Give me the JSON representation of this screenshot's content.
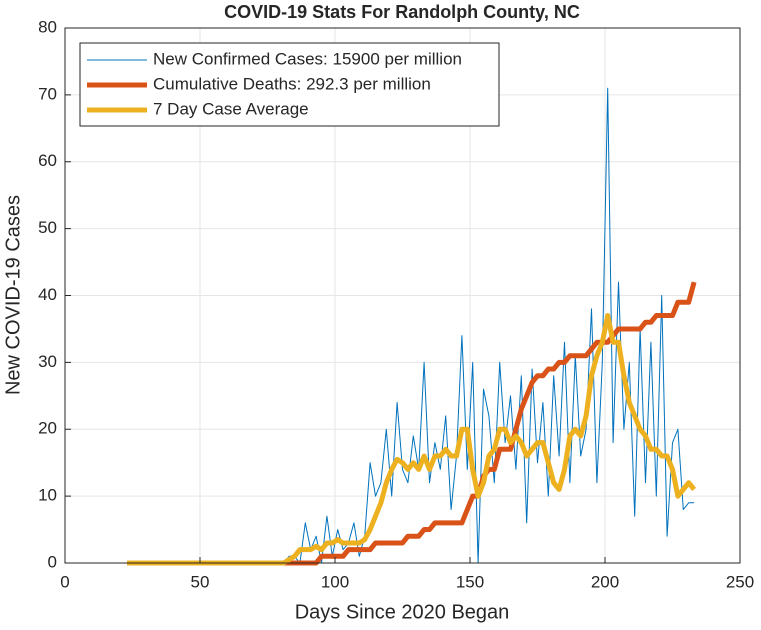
{
  "chart_data": {
    "type": "line",
    "title": "COVID-19 Stats For Randolph County, NC",
    "x_label": "Days Since 2020 Began",
    "y_label": "New COVID-19 Cases",
    "xlim": [
      0,
      250
    ],
    "xticks": [
      0,
      50,
      100,
      150,
      200,
      250
    ],
    "ylim": [
      0,
      80
    ],
    "yticks": [
      0,
      10,
      20,
      30,
      40,
      50,
      60,
      70,
      80
    ],
    "grid": true,
    "legend": "upper left",
    "x": [
      23,
      25,
      27,
      29,
      31,
      33,
      35,
      37,
      39,
      41,
      43,
      45,
      47,
      49,
      51,
      53,
      55,
      57,
      59,
      61,
      63,
      65,
      67,
      69,
      71,
      73,
      75,
      77,
      79,
      81,
      83,
      85,
      87,
      89,
      91,
      93,
      95,
      97,
      99,
      101,
      103,
      105,
      107,
      109,
      111,
      113,
      115,
      117,
      119,
      121,
      123,
      125,
      127,
      129,
      131,
      133,
      135,
      137,
      139,
      141,
      143,
      145,
      147,
      149,
      151,
      153,
      155,
      157,
      159,
      161,
      163,
      165,
      167,
      169,
      171,
      173,
      175,
      177,
      179,
      181,
      183,
      185,
      187,
      189,
      191,
      193,
      195,
      197,
      199,
      201,
      203,
      205,
      207,
      209,
      211,
      213,
      215,
      217,
      219,
      221,
      223,
      225,
      227,
      229,
      231,
      233
    ],
    "series": [
      {
        "name": "New Confirmed Cases: 15900 per million",
        "color": "#0072BD",
        "values": [
          0,
          0,
          0,
          0,
          0,
          0,
          0,
          0,
          0,
          0,
          0,
          0,
          0,
          0,
          0,
          0,
          0,
          0,
          0,
          0,
          0,
          0,
          0,
          0,
          0,
          0,
          0,
          0,
          0,
          0,
          1,
          1,
          0,
          6,
          2,
          4,
          0,
          7,
          1,
          5,
          2,
          3,
          6,
          1,
          4,
          15,
          10,
          12,
          20,
          10,
          24,
          14,
          12,
          19,
          14,
          30,
          12,
          18,
          14,
          22,
          8,
          16,
          34,
          14,
          30,
          0,
          26,
          22,
          12,
          30,
          18,
          25,
          14,
          28,
          6,
          29,
          15,
          24,
          10,
          28,
          16,
          33,
          12,
          31,
          16,
          20,
          38,
          12,
          30,
          71,
          18,
          42,
          20,
          30,
          7,
          35,
          12,
          33,
          10,
          40,
          4,
          18,
          20,
          8,
          9,
          9
        ]
      },
      {
        "name": "Cumulative Deaths: 292.3 per million",
        "color": "#D95319",
        "values": [
          0,
          0,
          0,
          0,
          0,
          0,
          0,
          0,
          0,
          0,
          0,
          0,
          0,
          0,
          0,
          0,
          0,
          0,
          0,
          0,
          0,
          0,
          0,
          0,
          0,
          0,
          0,
          0,
          0,
          0,
          0,
          0,
          0,
          0,
          0,
          0,
          1,
          1,
          1,
          1,
          1,
          2,
          2,
          2,
          2,
          2,
          3,
          3,
          3,
          3,
          3,
          3,
          4,
          4,
          4,
          5,
          5,
          6,
          6,
          6,
          6,
          6,
          6,
          8,
          10,
          10,
          13,
          14,
          14,
          17,
          17,
          17,
          20,
          23,
          25,
          27,
          28,
          28,
          29,
          29,
          30,
          30,
          31,
          31,
          31,
          31,
          32,
          33,
          33,
          33,
          34,
          35,
          35,
          35,
          35,
          35,
          36,
          36,
          37,
          37,
          37,
          37,
          39,
          39,
          39,
          42
        ]
      },
      {
        "name": "7 Day Case Average",
        "color": "#EDB120",
        "values": [
          0,
          0,
          0,
          0,
          0,
          0,
          0,
          0,
          0,
          0,
          0,
          0,
          0,
          0,
          0,
          0,
          0,
          0,
          0,
          0,
          0,
          0,
          0,
          0,
          0,
          0,
          0,
          0,
          0,
          0,
          0.5,
          1,
          2,
          2,
          2,
          2.5,
          2,
          3,
          3,
          3.5,
          3,
          3,
          3,
          3,
          3.5,
          5,
          7,
          9,
          12,
          14,
          15.5,
          15,
          14,
          15,
          14,
          16,
          14,
          16,
          16,
          17,
          16,
          16,
          20,
          20,
          14,
          10,
          12,
          16,
          17,
          20,
          20,
          18,
          19,
          18,
          16,
          17,
          18,
          18,
          15,
          12,
          11,
          14,
          19,
          20,
          19,
          22,
          28,
          31,
          33,
          37,
          33,
          33,
          28,
          24,
          22,
          20,
          19,
          17,
          17,
          16,
          16,
          14,
          10,
          11,
          12,
          11
        ]
      }
    ]
  }
}
